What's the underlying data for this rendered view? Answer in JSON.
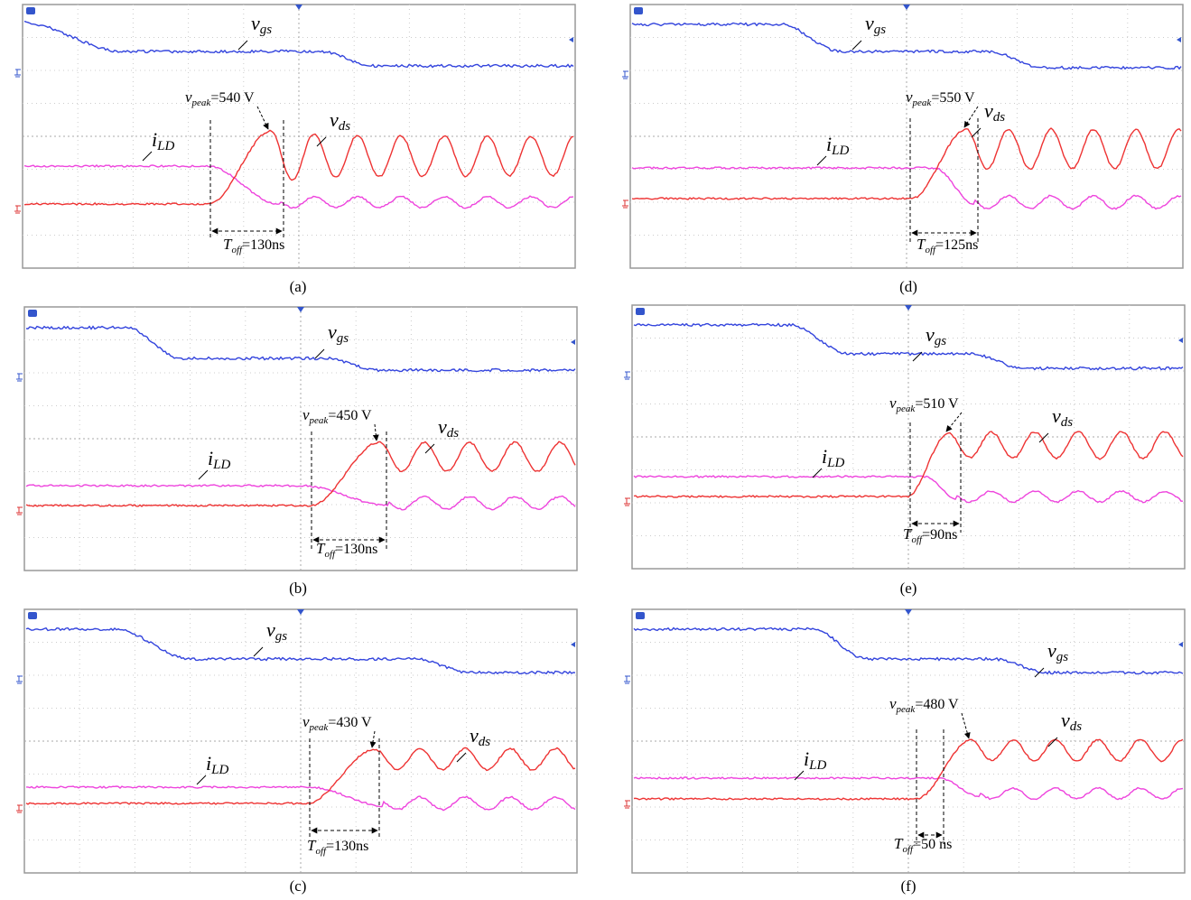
{
  "panels": [
    {
      "caption": "(a)",
      "vgs": {
        "main": "v",
        "sub": "gs"
      },
      "vds": {
        "main": "v",
        "sub": "ds"
      },
      "ild": {
        "main": "i",
        "sub": "LD"
      },
      "vpeak": {
        "main": "v",
        "sub": "peak",
        "rest": "=540 V"
      },
      "toff": {
        "main": "T",
        "sub": "off",
        "rest": "=130ns"
      }
    },
    {
      "caption": "(b)",
      "vgs": {
        "main": "v",
        "sub": "gs"
      },
      "vds": {
        "main": "v",
        "sub": "ds"
      },
      "ild": {
        "main": "i",
        "sub": "LD"
      },
      "vpeak": {
        "main": "v",
        "sub": "peak",
        "rest": "=450 V"
      },
      "toff": {
        "main": "T",
        "sub": "off",
        "rest": "=130ns"
      }
    },
    {
      "caption": "(c)",
      "vgs": {
        "main": "v",
        "sub": "gs"
      },
      "vds": {
        "main": "v",
        "sub": "ds"
      },
      "ild": {
        "main": "i",
        "sub": "LD"
      },
      "vpeak": {
        "main": "v",
        "sub": "peak",
        "rest": "=430 V"
      },
      "toff": {
        "main": "T",
        "sub": "off",
        "rest": "=130ns"
      }
    },
    {
      "caption": "(d)",
      "vgs": {
        "main": "v",
        "sub": "gs"
      },
      "vds": {
        "main": "v",
        "sub": "ds"
      },
      "ild": {
        "main": "i",
        "sub": "LD"
      },
      "vpeak": {
        "main": "v",
        "sub": "peak",
        "rest": "=550 V"
      },
      "toff": {
        "main": "T",
        "sub": "off",
        "rest": "=125ns"
      }
    },
    {
      "caption": "(e)",
      "vgs": {
        "main": "v",
        "sub": "gs"
      },
      "vds": {
        "main": "v",
        "sub": "ds"
      },
      "ild": {
        "main": "i",
        "sub": "LD"
      },
      "vpeak": {
        "main": "v",
        "sub": "peak",
        "rest": "=510 V"
      },
      "toff": {
        "main": "T",
        "sub": "off",
        "rest": "=90ns"
      }
    },
    {
      "caption": "(f)",
      "vgs": {
        "main": "v",
        "sub": "gs"
      },
      "vds": {
        "main": "v",
        "sub": "ds"
      },
      "ild": {
        "main": "i",
        "sub": "LD"
      },
      "vpeak": {
        "main": "v",
        "sub": "peak",
        "rest": "=480 V"
      },
      "toff": {
        "main": "T",
        "sub": "off",
        "rest": "=50 ns"
      }
    }
  ]
}
